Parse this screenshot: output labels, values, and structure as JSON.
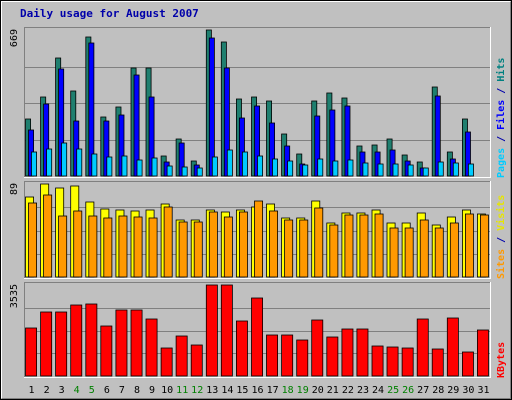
{
  "chart_data": {
    "type": "bar",
    "title": "Daily usage for August 2007",
    "categories": [
      "1",
      "2",
      "3",
      "4",
      "5",
      "6",
      "7",
      "8",
      "9",
      "10",
      "11",
      "12",
      "13",
      "14",
      "15",
      "16",
      "17",
      "18",
      "19",
      "20",
      "21",
      "22",
      "23",
      "24",
      "25",
      "26",
      "27",
      "28",
      "29",
      "30",
      "31"
    ],
    "weekend_days": [
      "4",
      "5",
      "11",
      "12",
      "18",
      "19",
      "25",
      "26"
    ],
    "grid": true,
    "panels": [
      {
        "id": "hits",
        "max_label": "669",
        "ylim": [
          0,
          669
        ],
        "side_labels": [
          {
            "text": "Pages",
            "color": "#00ccff"
          },
          {
            "text": " / ",
            "color": "#0000aa"
          },
          {
            "text": "Files",
            "color": "#0000ff"
          },
          {
            "text": " / ",
            "color": "#0000aa"
          },
          {
            "text": "Hits",
            "color": "#008080"
          }
        ],
        "series": [
          {
            "name": "Hits",
            "color": "#1f7f6f",
            "values": [
              263,
              364,
              540,
              391,
              636,
              269,
              317,
              497,
              496,
              92,
              170,
              70,
              669,
              616,
              354,
              360,
              345,
              193,
              100,
              344,
              382,
              357,
              137,
              140,
              171,
              96,
              62,
              410,
              110,
              259,
              0
            ]
          },
          {
            "name": "Files",
            "color": "#0000ff",
            "values": [
              213,
              331,
              490,
              250,
              608,
              251,
              279,
              465,
              363,
              66,
              150,
              52,
              634,
              497,
              265,
              323,
              244,
              139,
              55,
              275,
              302,
              319,
              112,
              111,
              117,
              67,
              37,
              366,
              79,
              203,
              0
            ]
          },
          {
            "name": "Pages",
            "color": "#00ccff",
            "values": [
              108,
              125,
              152,
              125,
              100,
              89,
              92,
              75,
              84,
              45,
              42,
              38,
              85,
              120,
              108,
              90,
              80,
              68,
              50,
              80,
              70,
              72,
              58,
              57,
              57,
              52,
              36,
              62,
              60,
              57,
              0
            ]
          }
        ]
      },
      {
        "id": "visits",
        "max_label": "89",
        "ylim": [
          0,
          89
        ],
        "side_labels": [
          {
            "text": "Sites",
            "color": "#ff9900"
          },
          {
            "text": " / ",
            "color": "#0000aa"
          },
          {
            "text": "Visits",
            "color": "#e6e600"
          }
        ],
        "series": [
          {
            "name": "Visits",
            "color": "#ffff00",
            "values": [
              77,
              89,
              85,
              87,
              72,
              65,
              64,
              63,
              64,
              70,
              55,
              55,
              64,
              62,
              64,
              67,
              70,
              56,
              56,
              73,
              52,
              61,
              61,
              64,
              52,
              52,
              61,
              50,
              57,
              64,
              60
            ]
          },
          {
            "name": "Sites",
            "color": "#ff9900",
            "values": [
              71,
              78,
              58,
              63,
              58,
              56,
              58,
              57,
              56,
              67,
              53,
              53,
              62,
              57,
              62,
              73,
              63,
              55,
              55,
              66,
              50,
              59,
              59,
              60,
              47,
              47,
              55,
              47,
              52,
              60,
              59
            ]
          }
        ]
      },
      {
        "id": "kbytes",
        "max_label": "3535",
        "ylim": [
          0,
          3535
        ],
        "side_labels": [
          {
            "text": "KBytes",
            "color": "#ff0000"
          }
        ],
        "series": [
          {
            "name": "KBytes",
            "color": "#ff0000",
            "values": [
              1870,
              2468,
              2490,
              2745,
              2779,
              1941,
              2548,
              2580,
              2213,
              1090,
              1558,
              1200,
              3535,
              3517,
              2149,
              3018,
              1575,
              1575,
              1390,
              2163,
              1530,
              1823,
              1813,
              1170,
              1117,
              1080,
              2199,
              1037,
              2250,
              940,
              1775
            ]
          }
        ]
      }
    ]
  }
}
